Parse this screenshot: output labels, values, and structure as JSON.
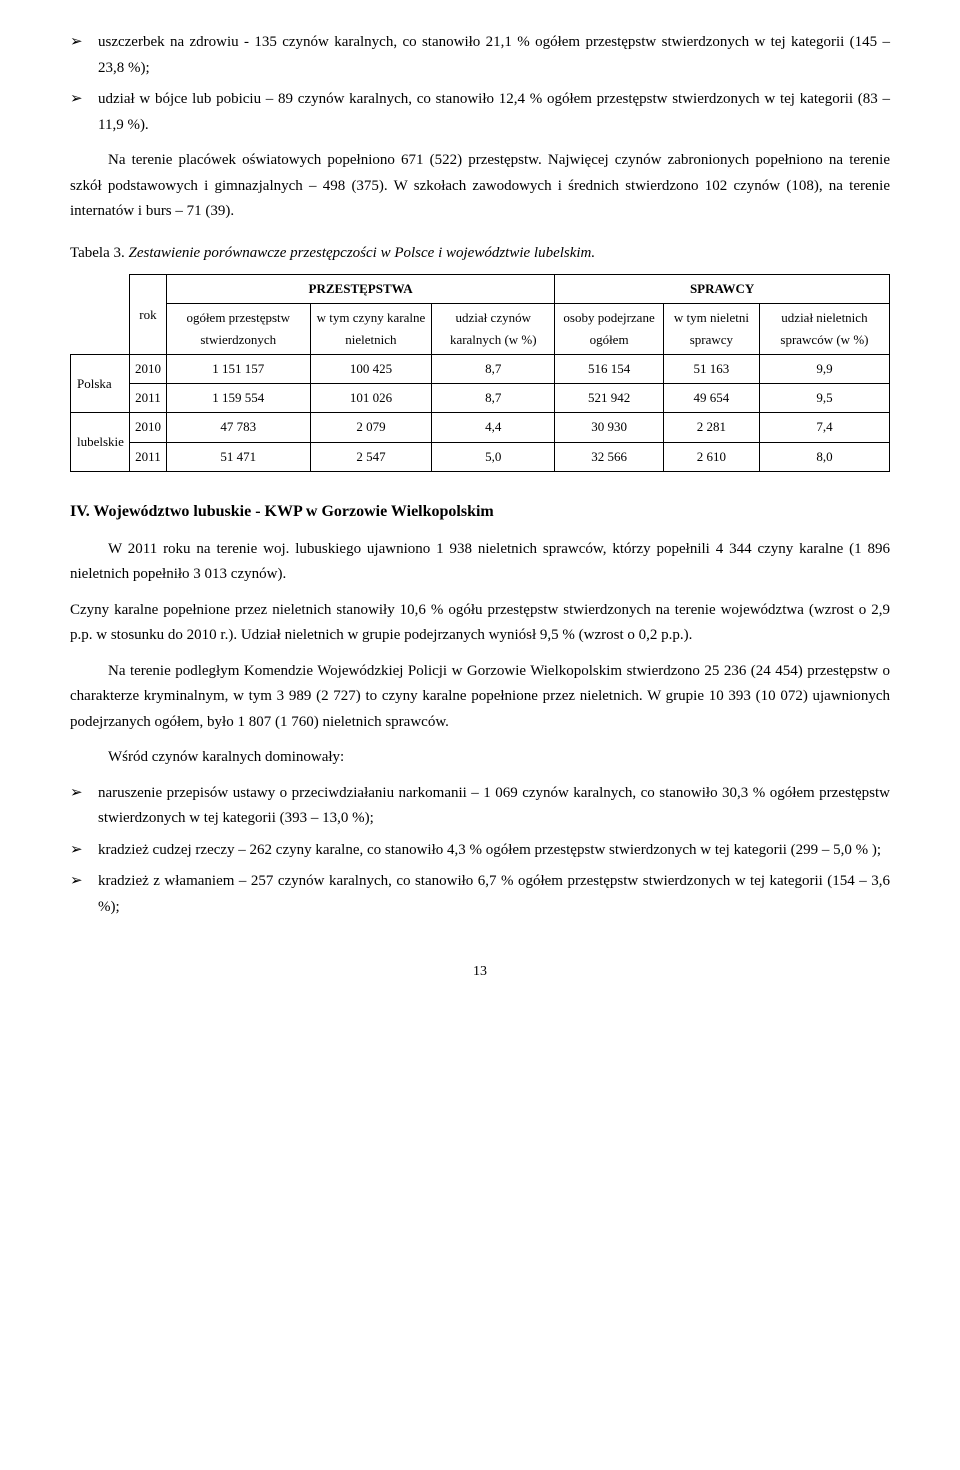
{
  "bullets_top": [
    "uszczerbek na zdrowiu - 135 czynów karalnych, co stanowiło 21,1 % ogółem przestępstw stwierdzonych w tej kategorii (145 – 23,8 %);",
    "udział w bójce lub pobiciu – 89 czynów karalnych, co stanowiło 12,4 % ogółem przestępstw stwierdzonych w tej kategorii (83 – 11,9 %)."
  ],
  "para1": "Na terenie placówek oświatowych popełniono 671 (522) przestępstw. Najwięcej czynów zabronionych popełniono na terenie szkół podstawowych i gimnazjalnych – 498 (375). W szkołach zawodowych i średnich stwierdzono 102 czynów (108), na terenie internatów i burs – 71 (39).",
  "table_caption_prefix": "Tabela 3.",
  "table_caption": "Zestawienie porównawcze przestępczości w Polsce i województwie lubelskim.",
  "table": {
    "group1": "PRZESTĘPSTWA",
    "group2": "SPRAWCY",
    "col_rok": "rok",
    "col_a": "ogółem przestępstw stwierdzonych",
    "col_b": "w tym czyny karalne nieletnich",
    "col_c": "udział czynów karalnych (w %)",
    "col_d": "osoby podejrzane ogółem",
    "col_e": "w tym nieletni sprawcy",
    "col_f": "udział nieletnich sprawców (w %)",
    "rows": [
      {
        "region": "Polska",
        "rok": "2010",
        "a": "1 151 157",
        "b": "100 425",
        "c": "8,7",
        "d": "516 154",
        "e": "51 163",
        "f": "9,9"
      },
      {
        "region": "",
        "rok": "2011",
        "a": "1 159 554",
        "b": "101 026",
        "c": "8,7",
        "d": "521 942",
        "e": "49 654",
        "f": "9,5"
      },
      {
        "region": "lubelskie",
        "rok": "2010",
        "a": "47 783",
        "b": "2 079",
        "c": "4,4",
        "d": "30 930",
        "e": "2 281",
        "f": "7,4"
      },
      {
        "region": "",
        "rok": "2011",
        "a": "51 471",
        "b": "2 547",
        "c": "5,0",
        "d": "32 566",
        "e": "2 610",
        "f": "8,0"
      }
    ]
  },
  "section4_title": "IV. Województwo lubuskie - KWP w Gorzowie Wielkopolskim",
  "para2": "W 2011 roku na terenie woj. lubuskiego ujawniono 1 938 nieletnich sprawców, którzy popełnili 4 344 czyny karalne (1 896 nieletnich popełniło 3 013 czynów).",
  "para3": "Czyny karalne popełnione przez nieletnich stanowiły 10,6 % ogółu przestępstw stwierdzonych na terenie województwa (wzrost o 2,9 p.p. w stosunku do 2010 r.). Udział nieletnich w grupie podejrzanych wyniósł 9,5 % (wzrost o 0,2 p.p.).",
  "para4": "Na terenie podległym Komendzie Wojewódzkiej Policji w Gorzowie Wielkopolskim stwierdzono 25 236 (24 454) przestępstw o charakterze kryminalnym, w tym 3 989 (2 727) to czyny karalne popełnione przez nieletnich. W grupie 10 393 (10 072) ujawnionych podejrzanych ogółem, było 1 807 (1 760) nieletnich sprawców.",
  "para5": "Wśród czynów karalnych dominowały:",
  "bullets_bottom": [
    "naruszenie przepisów ustawy o przeciwdziałaniu narkomanii – 1 069 czynów karalnych, co stanowiło 30,3 % ogółem przestępstw stwierdzonych w tej kategorii (393 – 13,0 %);",
    "kradzież cudzej rzeczy – 262 czyny karalne, co stanowiło 4,3 % ogółem przestępstw stwierdzonych w tej kategorii (299 – 5,0 % );",
    "kradzież z włamaniem – 257 czynów karalnych, co stanowiło 6,7 % ogółem przestępstw stwierdzonych w tej kategorii (154 – 3,6 %);"
  ],
  "page_number": "13"
}
